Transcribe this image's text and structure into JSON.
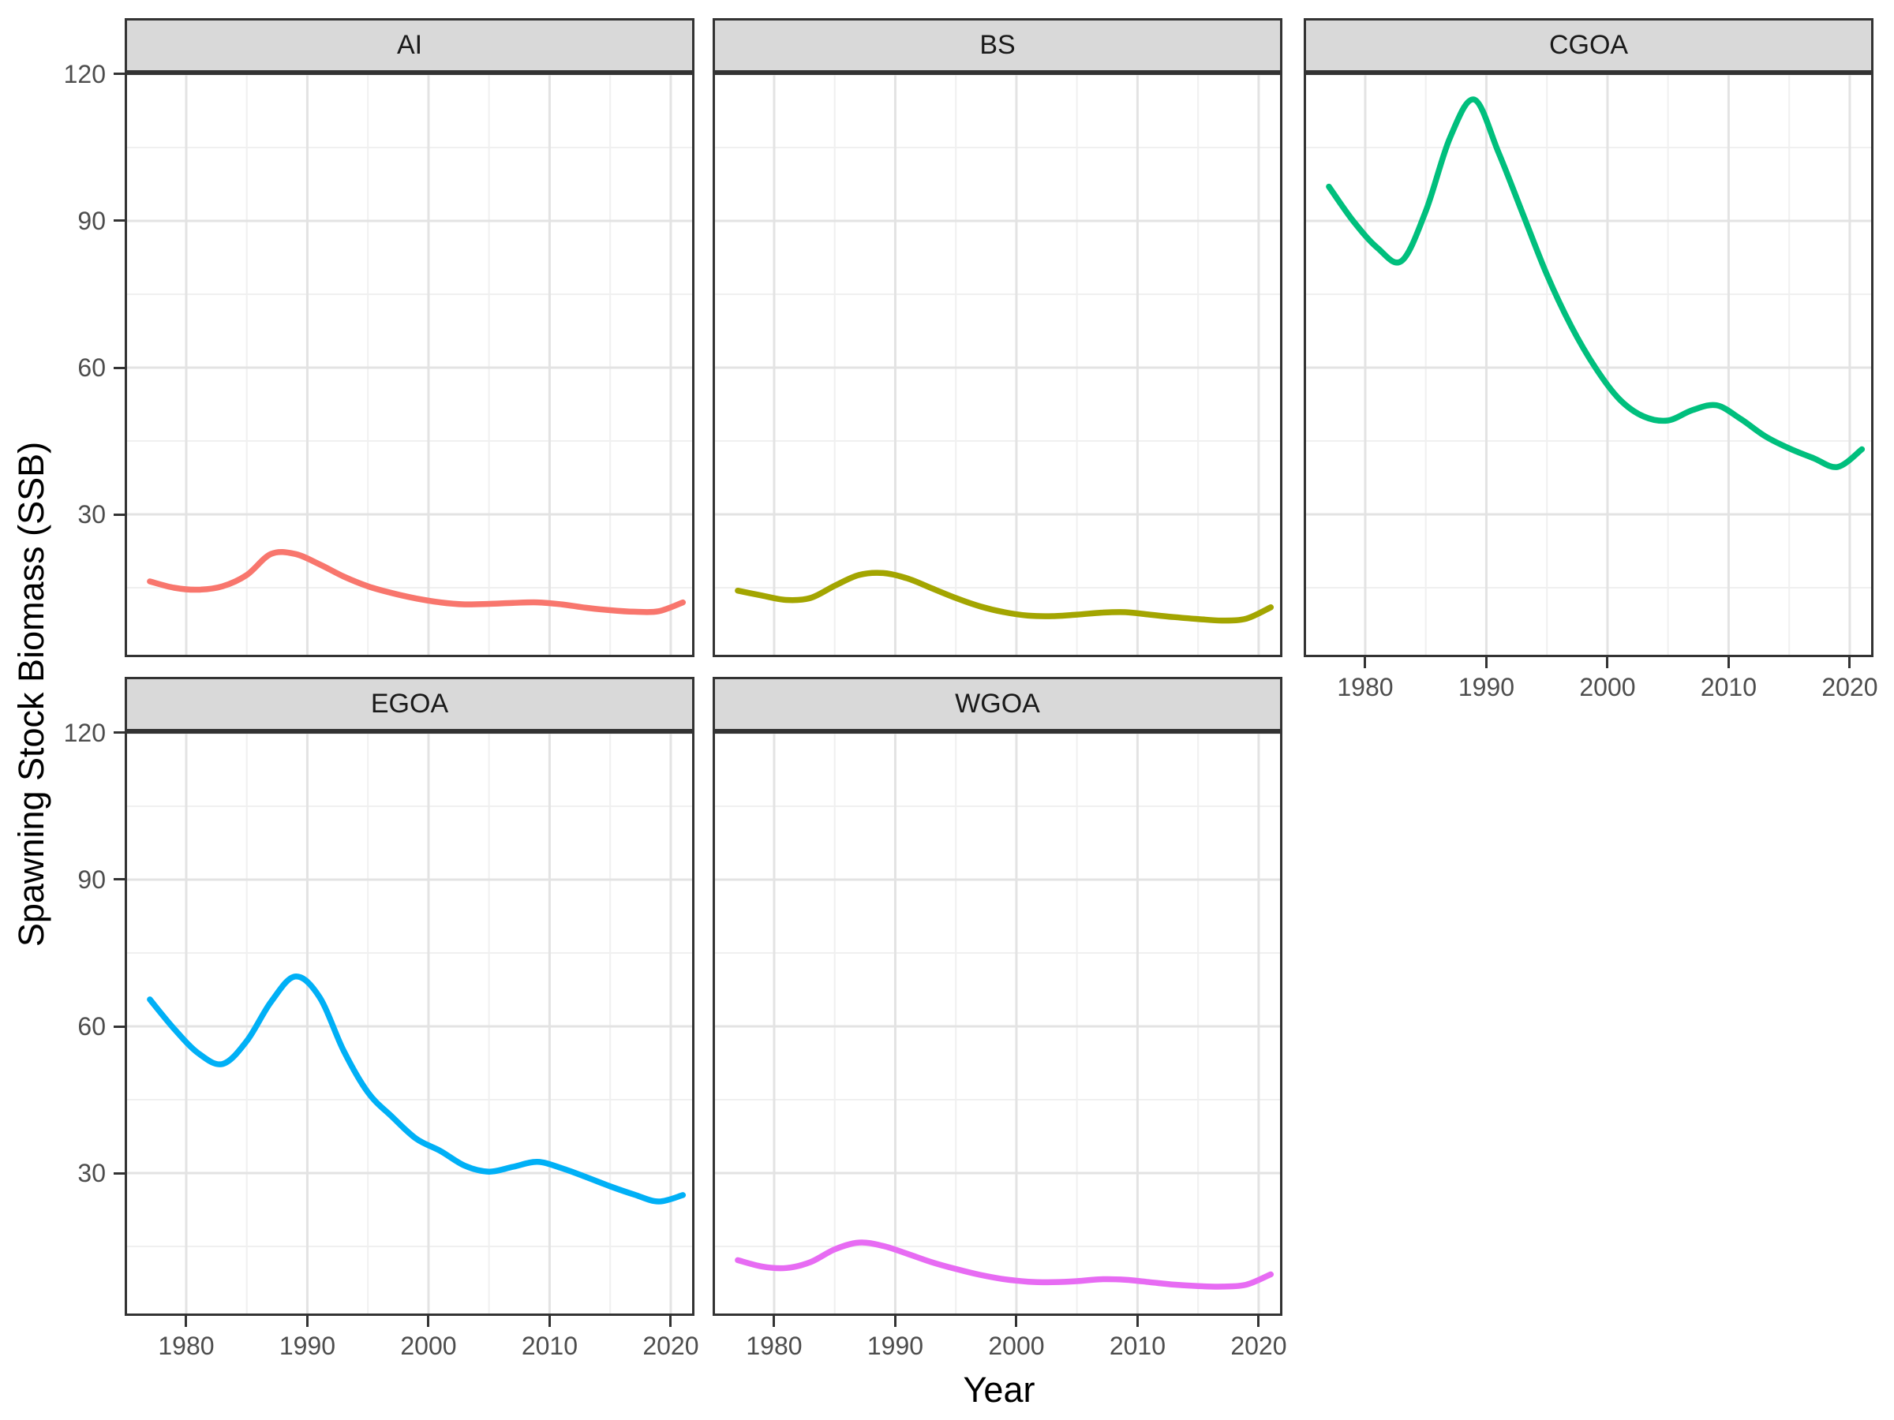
{
  "figure": {
    "y_axis_title": "Spawning Stock Biomass (SSB)",
    "x_axis_title": "Year"
  },
  "axes": {
    "xlabel": "Year",
    "ylabel": "Spawning Stock Biomass (SSB)",
    "x_ticks": [
      1980,
      1990,
      2000,
      2010,
      2020
    ],
    "y_ticks": [
      30,
      60,
      90,
      120
    ],
    "x_minor": [
      1975,
      1985,
      1995,
      2005,
      2015
    ],
    "y_minor": [
      15,
      45,
      75,
      105
    ],
    "x_range": [
      1974.92,
      2021.96
    ],
    "y_range": [
      0.81,
      120.32
    ],
    "grid": true,
    "legend_position": "none"
  },
  "theme": {
    "panel_background": "#FFFFFF",
    "panel_border": "#333333",
    "strip_background": "#D9D9D9",
    "strip_text_color": "#1A1A1A",
    "grid_major_color": "#E3E3E3",
    "grid_minor_color": "#F0F0F0",
    "tick_color": "#333333",
    "axis_text_color": "#4D4D4D",
    "line_width": 7.5
  },
  "chart_data": [
    {
      "type": "line",
      "facet": "AI",
      "grid_pos": [
        0,
        0
      ],
      "show_x_axis": false,
      "show_y_axis": true,
      "color": "#F8766D",
      "x": [
        1977,
        1979,
        1981,
        1983,
        1985,
        1987,
        1989,
        1991,
        1993,
        1995,
        1997,
        1999,
        2001,
        2003,
        2005,
        2007,
        2009,
        2011,
        2013,
        2015,
        2017,
        2019,
        2021
      ],
      "y": [
        16.3,
        15.0,
        14.6,
        15.3,
        17.6,
        21.9,
        21.9,
        19.8,
        17.3,
        15.3,
        13.9,
        12.8,
        12.0,
        11.6,
        11.7,
        11.9,
        12.0,
        11.6,
        10.9,
        10.4,
        10.1,
        10.2,
        12.0
      ]
    },
    {
      "type": "line",
      "facet": "BS",
      "grid_pos": [
        0,
        1
      ],
      "show_x_axis": false,
      "show_y_axis": false,
      "color": "#A3A500",
      "x": [
        1977,
        1979,
        1981,
        1983,
        1985,
        1987,
        1989,
        1991,
        1993,
        1995,
        1997,
        1999,
        2001,
        2003,
        2005,
        2007,
        2009,
        2011,
        2013,
        2015,
        2017,
        2019,
        2021
      ],
      "y": [
        14.4,
        13.4,
        12.5,
        12.9,
        15.4,
        17.6,
        18.0,
        16.9,
        14.9,
        12.9,
        11.2,
        10.0,
        9.3,
        9.2,
        9.5,
        9.9,
        10.0,
        9.5,
        9.0,
        8.6,
        8.3,
        8.7,
        11.0
      ]
    },
    {
      "type": "line",
      "facet": "CGOA",
      "grid_pos": [
        0,
        2
      ],
      "show_x_axis": true,
      "show_y_axis": false,
      "color": "#00BF7D",
      "x": [
        1977,
        1979,
        1981,
        1983,
        1985,
        1987,
        1989,
        1991,
        1993,
        1995,
        1997,
        1999,
        2001,
        2003,
        2005,
        2007,
        2009,
        2011,
        2013,
        2015,
        2017,
        2019,
        2021
      ],
      "y": [
        97.0,
        90.0,
        84.5,
        81.8,
        92.0,
        107.0,
        114.8,
        104.0,
        91.5,
        79.0,
        68.5,
        60.0,
        53.5,
        50.0,
        49.2,
        51.3,
        52.3,
        49.5,
        46.0,
        43.5,
        41.5,
        39.7,
        43.3
      ]
    },
    {
      "type": "line",
      "facet": "EGOA",
      "grid_pos": [
        1,
        0
      ],
      "show_x_axis": true,
      "show_y_axis": true,
      "color": "#00B0F6",
      "x": [
        1977,
        1979,
        1981,
        1983,
        1985,
        1987,
        1989,
        1991,
        1993,
        1995,
        1997,
        1999,
        2001,
        2003,
        2005,
        2007,
        2009,
        2011,
        2013,
        2015,
        2017,
        2019,
        2021
      ],
      "y": [
        65.5,
        59.5,
        54.5,
        52.3,
        57.0,
        65.0,
        70.2,
        66.0,
        55.0,
        46.5,
        41.5,
        37.0,
        34.5,
        31.5,
        30.3,
        31.3,
        32.3,
        31.0,
        29.2,
        27.3,
        25.6,
        24.2,
        25.5
      ]
    },
    {
      "type": "line",
      "facet": "WGOA",
      "grid_pos": [
        1,
        1
      ],
      "show_x_axis": true,
      "show_y_axis": false,
      "color": "#E76BF3",
      "x": [
        1977,
        1979,
        1981,
        1983,
        1985,
        1987,
        1989,
        1991,
        1993,
        1995,
        1997,
        1999,
        2001,
        2003,
        2005,
        2007,
        2009,
        2011,
        2013,
        2015,
        2017,
        2019,
        2021
      ],
      "y": [
        12.2,
        10.9,
        10.6,
        11.8,
        14.4,
        15.8,
        15.1,
        13.5,
        11.8,
        10.4,
        9.2,
        8.3,
        7.8,
        7.7,
        7.9,
        8.3,
        8.2,
        7.7,
        7.2,
        6.9,
        6.8,
        7.2,
        9.3
      ]
    }
  ]
}
